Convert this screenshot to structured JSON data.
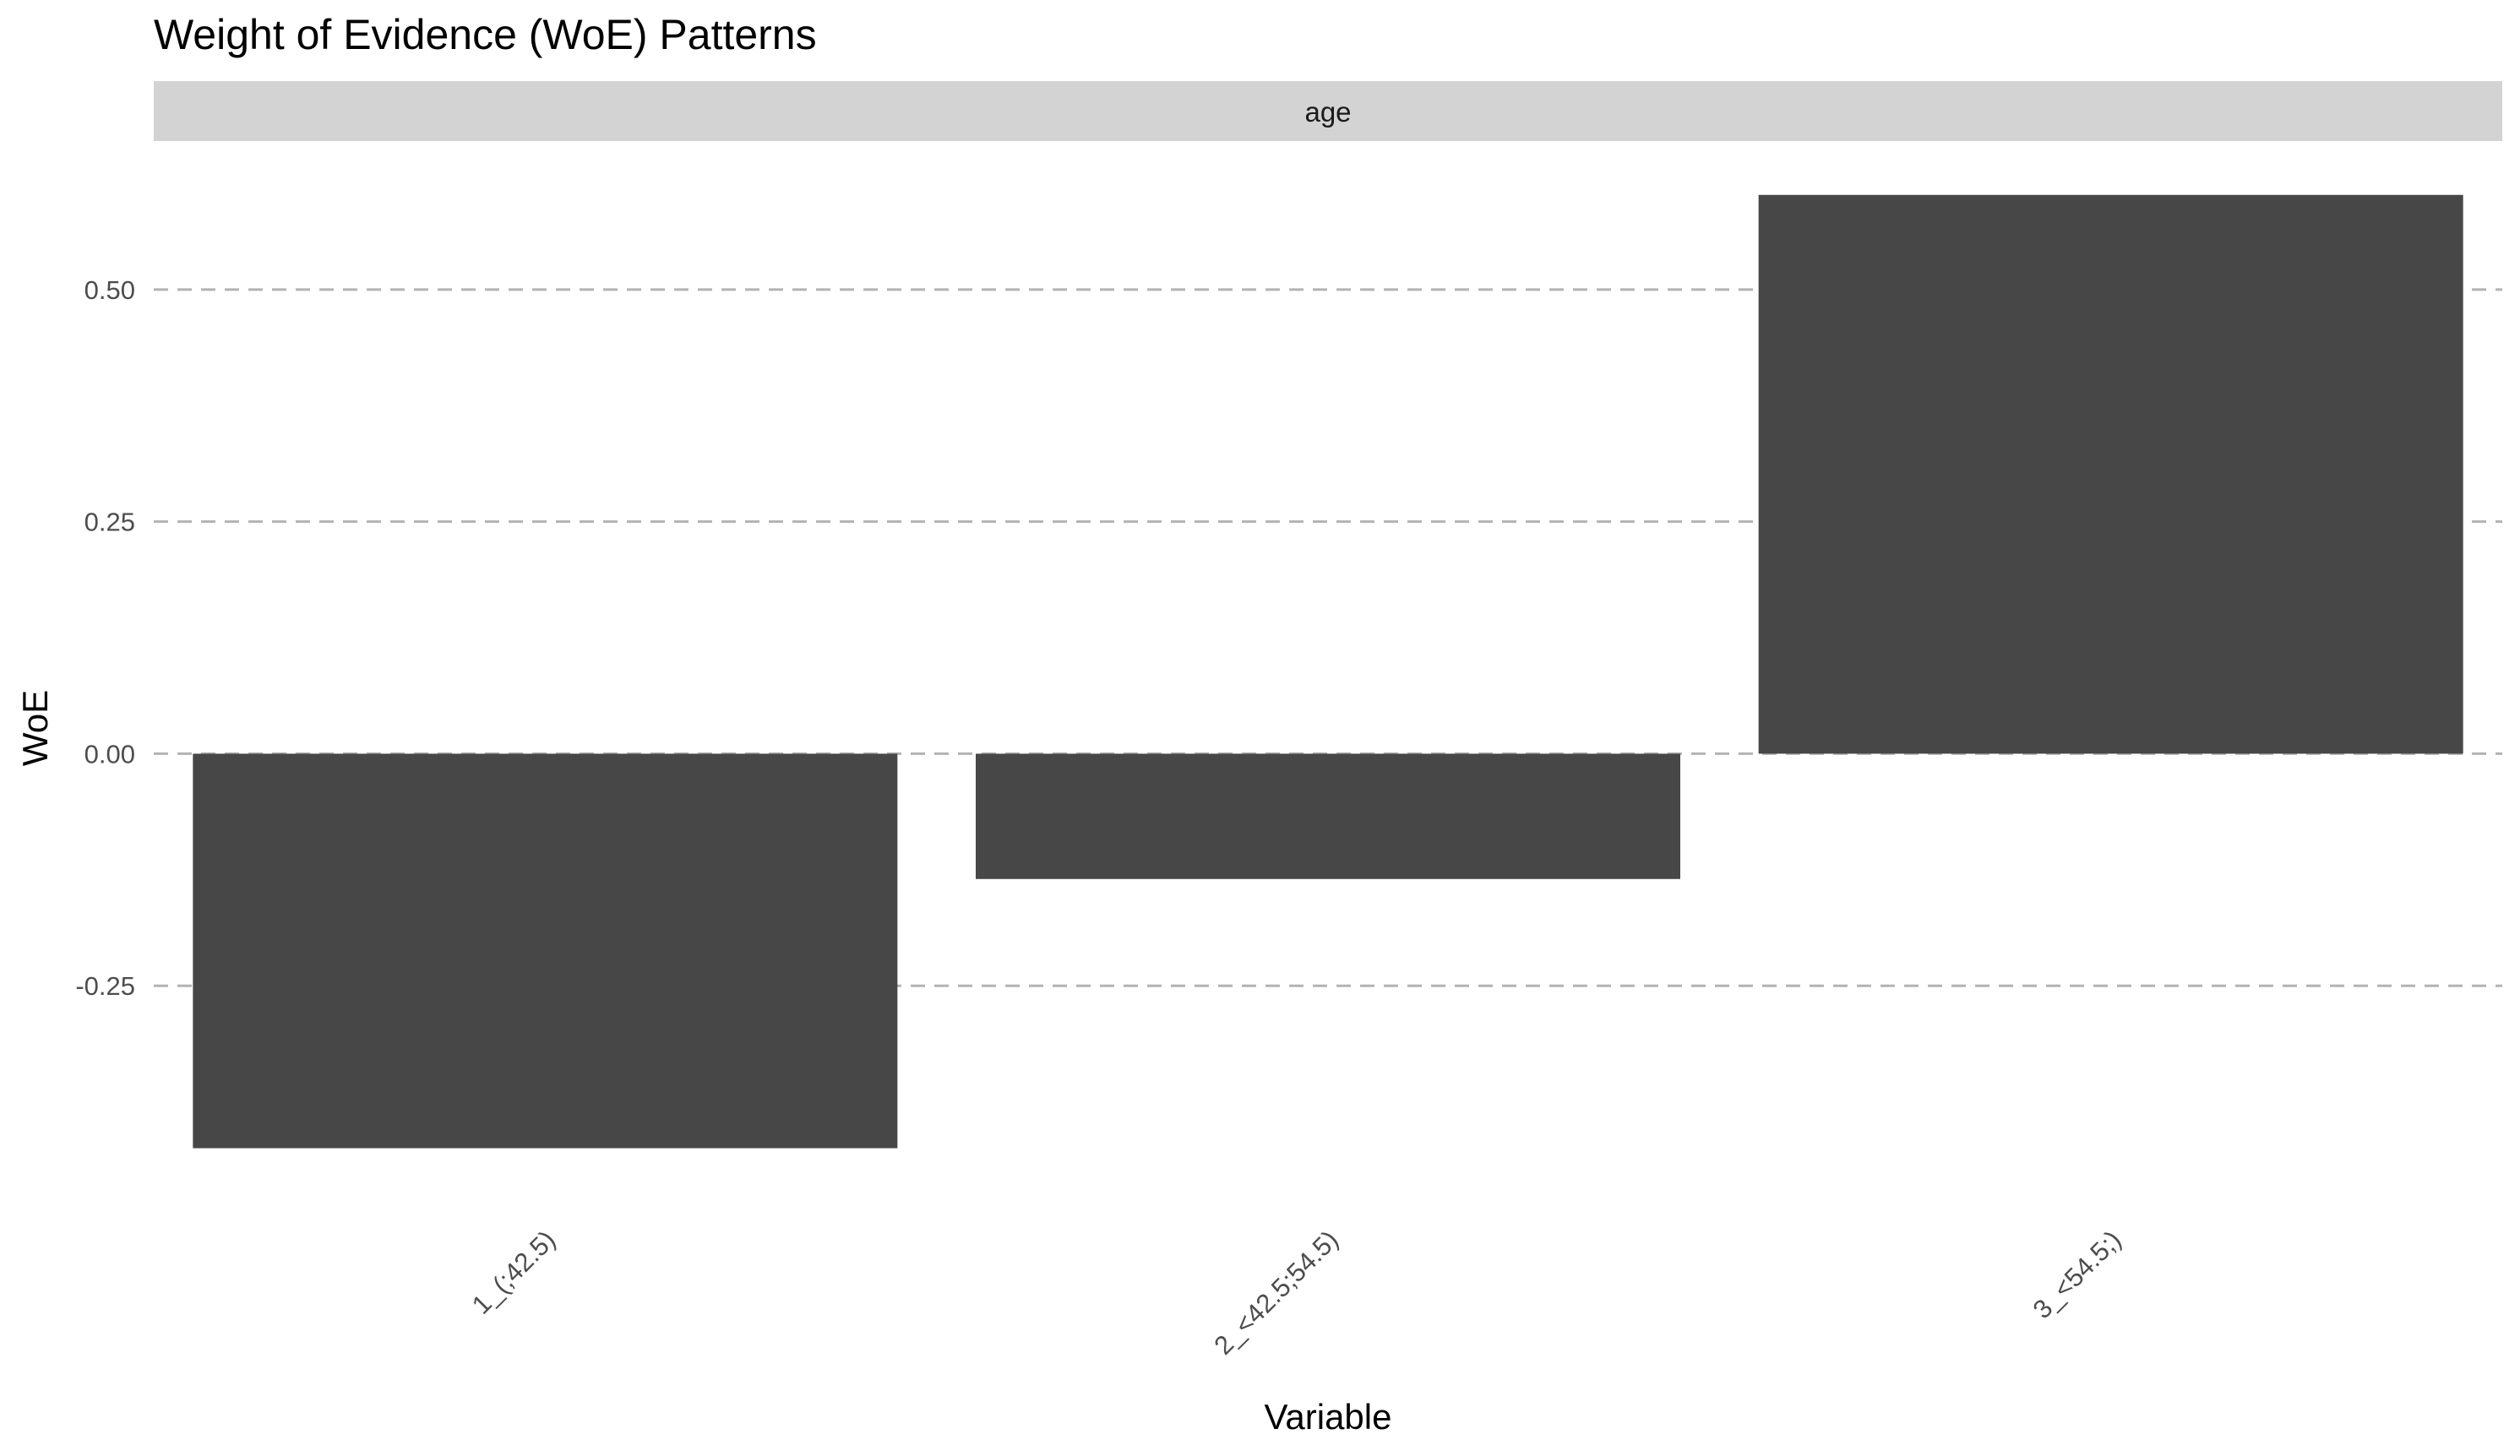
{
  "chart_data": {
    "type": "bar",
    "title": "Weight of Evidence (WoE) Patterns",
    "facet": "age",
    "xlabel": "Variable",
    "ylabel": "WoE",
    "categories": [
      "1_(;42.5)",
      "2_<42.5;54.5)",
      "3_<54.5;)"
    ],
    "values": [
      -0.425,
      -0.135,
      0.602
    ],
    "ylim": [
      -0.48,
      0.63
    ],
    "yticks": [
      -0.25,
      0.0,
      0.25,
      0.5
    ],
    "ytick_labels": [
      "-0.25",
      "0.00",
      "0.25",
      "0.50"
    ],
    "grid": "horizontal dashed",
    "legend": "none"
  },
  "colors": {
    "bar": "#474747",
    "grid": "#b3b3b3",
    "strip": "#d3d3d3"
  }
}
